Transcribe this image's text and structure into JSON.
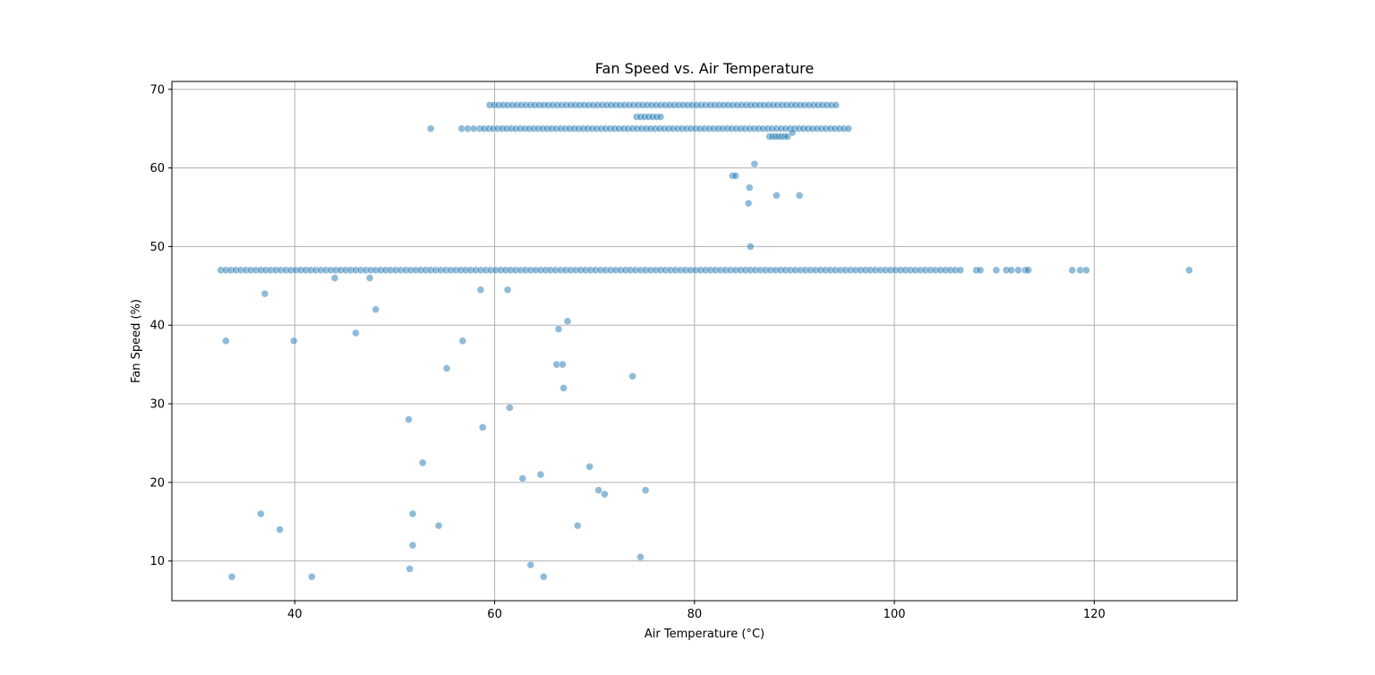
{
  "chart_data": {
    "type": "scatter",
    "title": "Fan Speed vs. Air Temperature",
    "xlabel": "Air Temperature (°C)",
    "ylabel": "Fan Speed (%)",
    "xlim": [
      27.7,
      134.3
    ],
    "ylim": [
      4.95,
      71.0
    ],
    "xticks": [
      40,
      60,
      80,
      100,
      120
    ],
    "yticks": [
      10,
      20,
      30,
      40,
      50,
      60,
      70
    ],
    "grid": true,
    "color": "#1f77b4",
    "bands": [
      {
        "y": 68,
        "xmin": 59.5,
        "xmax": 94.3,
        "step": 0.45
      },
      {
        "y": 65,
        "xmin": 58.5,
        "xmax": 95.6,
        "step": 0.45
      },
      {
        "y": 47,
        "xmin": 32.6,
        "xmax": 106.7,
        "step": 0.5
      },
      {
        "y": 64,
        "xmin": 87.5,
        "xmax": 89.3,
        "step": 0.3
      },
      {
        "y": 66.5,
        "xmin": 74.2,
        "xmax": 76.6,
        "step": 0.4
      }
    ],
    "points": [
      {
        "x": 53.6,
        "y": 65
      },
      {
        "x": 56.7,
        "y": 65
      },
      {
        "x": 57.3,
        "y": 65
      },
      {
        "x": 57.9,
        "y": 65
      },
      {
        "x": 89.8,
        "y": 64.5
      },
      {
        "x": 108.2,
        "y": 47
      },
      {
        "x": 108.6,
        "y": 47
      },
      {
        "x": 110.2,
        "y": 47
      },
      {
        "x": 111.2,
        "y": 47
      },
      {
        "x": 111.7,
        "y": 47
      },
      {
        "x": 112.4,
        "y": 47
      },
      {
        "x": 113.1,
        "y": 47
      },
      {
        "x": 113.4,
        "y": 47
      },
      {
        "x": 117.8,
        "y": 47
      },
      {
        "x": 118.6,
        "y": 47
      },
      {
        "x": 119.2,
        "y": 47
      },
      {
        "x": 129.5,
        "y": 47
      },
      {
        "x": 86.0,
        "y": 60.5
      },
      {
        "x": 83.8,
        "y": 59
      },
      {
        "x": 84.1,
        "y": 59
      },
      {
        "x": 85.5,
        "y": 57.5
      },
      {
        "x": 88.2,
        "y": 56.5
      },
      {
        "x": 90.5,
        "y": 56.5
      },
      {
        "x": 85.4,
        "y": 55.5
      },
      {
        "x": 85.6,
        "y": 50
      },
      {
        "x": 37.0,
        "y": 44
      },
      {
        "x": 47.5,
        "y": 46
      },
      {
        "x": 44.0,
        "y": 46
      },
      {
        "x": 58.6,
        "y": 44.5
      },
      {
        "x": 61.3,
        "y": 44.5
      },
      {
        "x": 48.1,
        "y": 42
      },
      {
        "x": 67.3,
        "y": 40.5
      },
      {
        "x": 66.4,
        "y": 39.5
      },
      {
        "x": 46.1,
        "y": 39
      },
      {
        "x": 33.1,
        "y": 38
      },
      {
        "x": 39.9,
        "y": 38
      },
      {
        "x": 56.8,
        "y": 38
      },
      {
        "x": 55.2,
        "y": 34.5
      },
      {
        "x": 66.2,
        "y": 35
      },
      {
        "x": 66.8,
        "y": 35
      },
      {
        "x": 73.8,
        "y": 33.5
      },
      {
        "x": 66.9,
        "y": 32
      },
      {
        "x": 61.5,
        "y": 29.5
      },
      {
        "x": 51.4,
        "y": 28
      },
      {
        "x": 58.8,
        "y": 27
      },
      {
        "x": 52.8,
        "y": 22.5
      },
      {
        "x": 69.5,
        "y": 22
      },
      {
        "x": 64.6,
        "y": 21
      },
      {
        "x": 62.8,
        "y": 20.5
      },
      {
        "x": 70.4,
        "y": 19
      },
      {
        "x": 75.1,
        "y": 19
      },
      {
        "x": 71.0,
        "y": 18.5
      },
      {
        "x": 36.6,
        "y": 16
      },
      {
        "x": 51.8,
        "y": 16
      },
      {
        "x": 54.4,
        "y": 14.5
      },
      {
        "x": 68.3,
        "y": 14.5
      },
      {
        "x": 38.5,
        "y": 14
      },
      {
        "x": 51.8,
        "y": 12
      },
      {
        "x": 74.6,
        "y": 10.5
      },
      {
        "x": 63.6,
        "y": 9.5
      },
      {
        "x": 51.5,
        "y": 9
      },
      {
        "x": 33.7,
        "y": 8
      },
      {
        "x": 41.7,
        "y": 8
      },
      {
        "x": 64.9,
        "y": 8
      }
    ]
  }
}
